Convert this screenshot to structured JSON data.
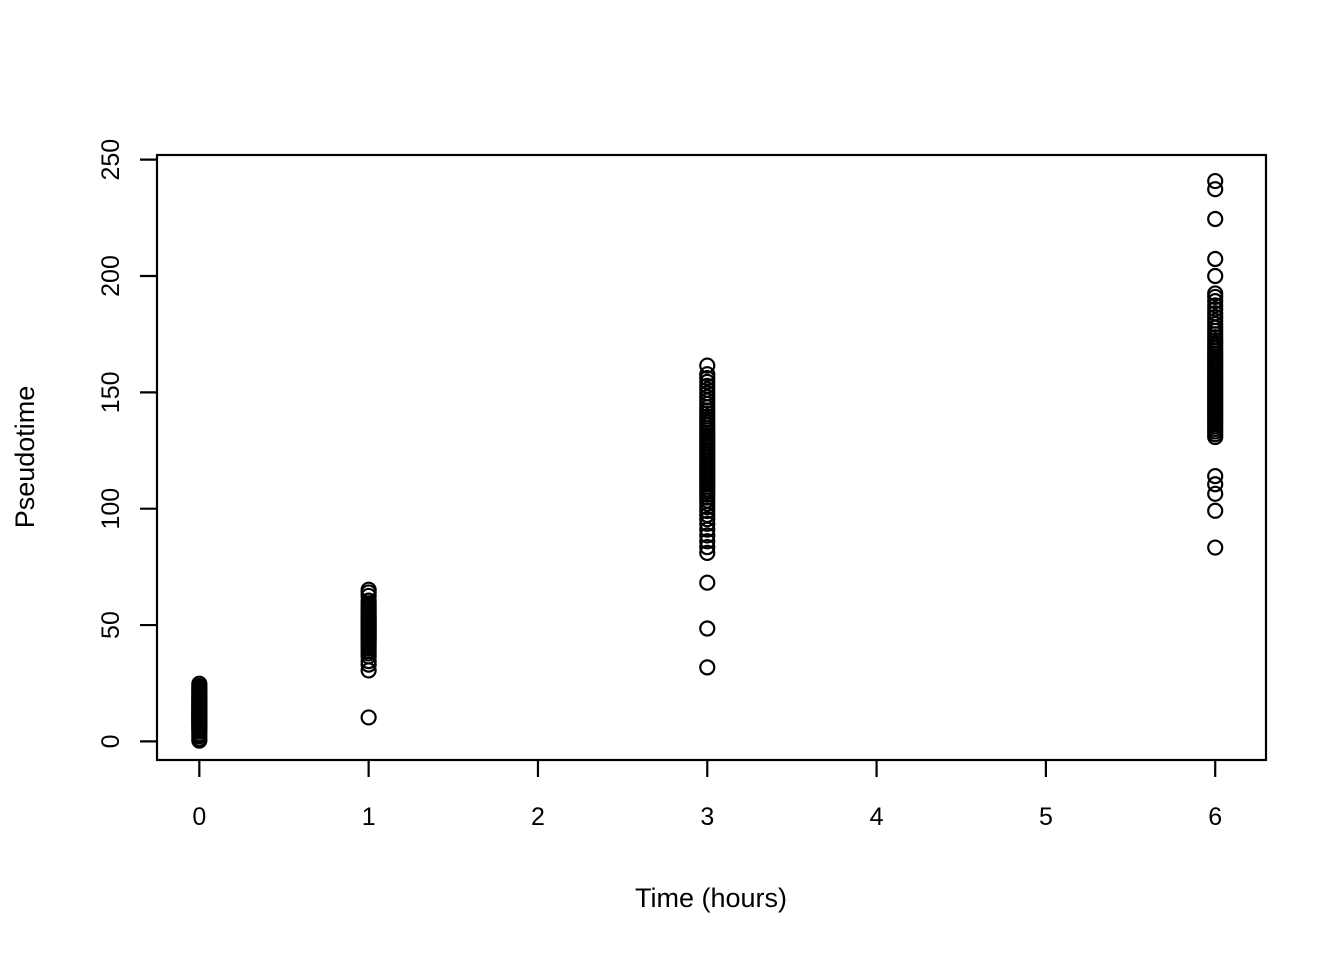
{
  "figure": {
    "background_color": "#ffffff",
    "stroke_color": "#000000"
  },
  "chart_data": {
    "type": "scatter",
    "title": "",
    "xlabel": "Time (hours)",
    "ylabel": "Pseudotime",
    "marker": "open-circle",
    "grid": false,
    "legend": null,
    "xlim": [
      -0.25,
      6.3
    ],
    "ylim": [
      -8,
      252
    ],
    "x_tick_values": [
      0,
      1,
      2,
      3,
      4,
      5,
      6
    ],
    "x_tick_labels": [
      "0",
      "1",
      "2",
      "3",
      "4",
      "5",
      "6"
    ],
    "y_tick_values": [
      0,
      50,
      100,
      150,
      200,
      250
    ],
    "y_tick_labels": [
      "0",
      "50",
      "100",
      "150",
      "200",
      "250"
    ],
    "clusters": [
      {
        "x": 0,
        "values": [
          0.3,
          1.1,
          2.2,
          3.1,
          4.2,
          4.9,
          5.4,
          5.9,
          6.4,
          6.9,
          7.3,
          7.7,
          8.1,
          8.5,
          8.8,
          9.2,
          9.5,
          9.9,
          10.2,
          10.6,
          10.9,
          11.3,
          11.6,
          12.0,
          12.3,
          12.7,
          13.0,
          13.4,
          13.8,
          14.2,
          14.6,
          15.0,
          15.4,
          15.8,
          16.3,
          16.7,
          17.2,
          17.7,
          18.2,
          18.7,
          19.2,
          19.8,
          20.4,
          21.0,
          21.6,
          22.3,
          23.0,
          23.8,
          24.8
        ]
      },
      {
        "x": 1,
        "values": [
          10.3,
          30.5,
          33.0,
          34.5,
          36.5,
          37.8,
          38.9,
          40.0,
          41.0,
          41.9,
          42.7,
          43.5,
          44.2,
          44.9,
          45.5,
          46.1,
          46.7,
          47.3,
          47.9,
          48.5,
          49.1,
          49.7,
          50.3,
          50.9,
          51.5,
          52.1,
          52.8,
          53.5,
          54.2,
          55.0,
          55.8,
          56.6,
          57.5,
          58.4,
          59.3,
          60.5,
          62.5,
          64.0,
          65.2
        ]
      },
      {
        "x": 3,
        "values": [
          31.8,
          48.5,
          68.2,
          81.0,
          83.5,
          86.0,
          88.5,
          91.0,
          93.5,
          95.5,
          97.3,
          99.0,
          100.6,
          102.1,
          103.5,
          104.8,
          106.0,
          107.2,
          108.3,
          109.4,
          110.5,
          111.5,
          112.5,
          113.5,
          114.5,
          115.5,
          116.5,
          117.5,
          118.5,
          119.5,
          120.5,
          121.5,
          122.5,
          123.5,
          124.5,
          125.5,
          126.5,
          127.5,
          128.5,
          129.5,
          130.5,
          131.5,
          132.6,
          133.7,
          134.8,
          136.0,
          137.2,
          138.4,
          139.6,
          140.9,
          142.2,
          143.6,
          145.0,
          146.5,
          148.0,
          149.6,
          151.2,
          152.8,
          154.5,
          156.1,
          157.8,
          161.5
        ]
      },
      {
        "x": 6,
        "values": [
          83.3,
          99.1,
          106.4,
          110.5,
          114.0,
          130.8,
          132.0,
          133.2,
          134.3,
          135.4,
          136.4,
          137.4,
          138.4,
          139.4,
          140.4,
          141.3,
          142.2,
          143.1,
          144.0,
          144.9,
          145.8,
          146.7,
          147.6,
          148.5,
          149.4,
          150.3,
          151.2,
          152.1,
          153.0,
          153.9,
          154.8,
          155.7,
          156.6,
          157.5,
          158.5,
          159.5,
          160.5,
          161.5,
          162.5,
          163.5,
          164.5,
          165.5,
          166.6,
          167.7,
          168.8,
          170.0,
          171.2,
          172.4,
          173.7,
          175.0,
          176.4,
          177.8,
          179.3,
          180.8,
          182.4,
          184.0,
          185.7,
          187.4,
          189.2,
          191.0,
          192.5,
          200.0,
          207.3,
          224.5,
          237.3,
          240.8
        ]
      }
    ]
  }
}
